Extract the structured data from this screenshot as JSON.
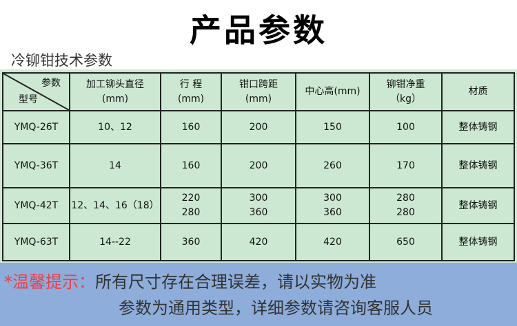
{
  "title": "产品参数",
  "subtitle": "冷铆钳技术参数",
  "table": {
    "corner_top": "参数",
    "corner_bottom": "型号",
    "headers": [
      [
        "加工铆头直径",
        "(mm)"
      ],
      [
        "行 程",
        "(mm)"
      ],
      [
        "钳口跨距",
        "(mm)"
      ],
      [
        "中心高(mm)",
        ""
      ],
      [
        "铆钳净重",
        "（kg）"
      ],
      [
        "材质",
        ""
      ]
    ],
    "rows": [
      {
        "model": "YMQ-26T",
        "cells": [
          "10、12",
          "160",
          "200",
          "150",
          "100",
          "整体铸钢"
        ]
      },
      {
        "model": "YMQ-36T",
        "cells": [
          "14",
          "160",
          "200",
          "260",
          "170",
          "整体铸钢"
        ]
      },
      {
        "model": "YMQ-42T",
        "cells": [
          "12、14、16（18）",
          "220\n280",
          "300\n360",
          "300\n360",
          "280\n280",
          "整体铸钢"
        ]
      },
      {
        "model": "YMQ-63T",
        "cells": [
          "14--22",
          "360",
          "420",
          "420",
          "650",
          "整体铸钢"
        ]
      }
    ]
  },
  "notice": {
    "label": "*温馨提示：",
    "line1": "所有尺寸存在合理误差，请以实物为准",
    "line2": "参数为通用类型，详细参数请咨询客服人员"
  },
  "colors": {
    "table_bg": "#cde8d2",
    "footer_bg": "#8eaddb",
    "warning": "#e8414d"
  }
}
